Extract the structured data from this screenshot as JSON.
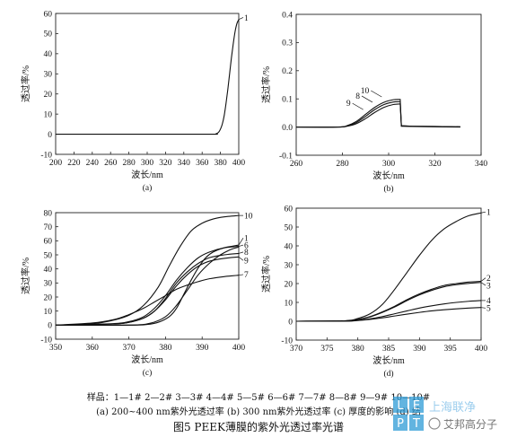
{
  "chart_data": [
    {
      "id": "a",
      "type": "line",
      "sublabel": "(a)",
      "xlabel": "波长/nm",
      "ylabel": "透过率/%",
      "xlim": [
        200,
        400
      ],
      "ylim": [
        -10,
        60
      ],
      "xticks": [
        200,
        220,
        240,
        260,
        280,
        300,
        320,
        340,
        360,
        380,
        400
      ],
      "yticks": [
        -10,
        0,
        10,
        20,
        30,
        40,
        50,
        60
      ],
      "series": [
        {
          "name": "1",
          "label_at": [
            400,
            58
          ],
          "x": [
            200,
            300,
            370,
            375,
            378,
            380,
            382,
            384,
            386,
            388,
            390,
            392,
            394,
            396,
            398,
            400
          ],
          "y": [
            0,
            0,
            0,
            0.2,
            1,
            2.5,
            5,
            9,
            15,
            22,
            30,
            38,
            45,
            51,
            55,
            57
          ]
        }
      ]
    },
    {
      "id": "b",
      "type": "line",
      "sublabel": "(b)",
      "xlabel": "波长/nm",
      "ylabel": "透过率/%",
      "xlim": [
        260,
        340
      ],
      "ylim": [
        -0.1,
        0.4
      ],
      "xticks": [
        260,
        280,
        300,
        320,
        340
      ],
      "yticks": [
        -0.1,
        0.0,
        0.1,
        0.2,
        0.3,
        0.4
      ],
      "series": [
        {
          "name": "10",
          "label_at": [
            297,
            0.107
          ],
          "x": [
            260,
            278,
            282,
            286,
            290,
            294,
            298,
            302,
            305,
            305.5,
            310,
            320,
            331
          ],
          "y": [
            0,
            0,
            0.005,
            0.02,
            0.045,
            0.07,
            0.088,
            0.097,
            0.098,
            0.005,
            0.003,
            0.002,
            0.001
          ]
        },
        {
          "name": "8",
          "label_at": [
            293,
            0.088
          ],
          "x": [
            260,
            278,
            282,
            286,
            290,
            294,
            298,
            302,
            305,
            305.5,
            310,
            320,
            331
          ],
          "y": [
            0,
            0,
            0.004,
            0.016,
            0.038,
            0.062,
            0.08,
            0.089,
            0.09,
            0.004,
            0.003,
            0.002,
            0.001
          ]
        },
        {
          "name": "9",
          "label_at": [
            289,
            0.062
          ],
          "x": [
            260,
            278,
            282,
            286,
            290,
            294,
            298,
            302,
            305,
            305.5,
            310,
            320,
            331
          ],
          "y": [
            0,
            0,
            0.003,
            0.012,
            0.03,
            0.052,
            0.07,
            0.08,
            0.082,
            0.003,
            0.002,
            0.001,
            0
          ]
        }
      ]
    },
    {
      "id": "c",
      "type": "line",
      "sublabel": "(c)",
      "xlabel": "波长/nm",
      "ylabel": "透过率/%",
      "xlim": [
        350,
        400
      ],
      "ylim": [
        -10,
        80
      ],
      "xticks": [
        350,
        360,
        370,
        380,
        390,
        400
      ],
      "yticks": [
        -10,
        0,
        10,
        20,
        30,
        40,
        50,
        60,
        70,
        80
      ],
      "series": [
        {
          "name": "10",
          "label_at": [
            400,
            78
          ],
          "x": [
            350,
            360,
            365,
            370,
            374,
            378,
            381,
            384,
            387,
            390,
            393,
            396,
            400
          ],
          "y": [
            0,
            1,
            3,
            7,
            14,
            27,
            42,
            56,
            67,
            72.5,
            75.5,
            77,
            78
          ]
        },
        {
          "name": "1",
          "label_at": [
            400,
            62
          ],
          "x": [
            350,
            370,
            375,
            378,
            381,
            383,
            385,
            387,
            389,
            391,
            393,
            396,
            400
          ],
          "y": [
            0,
            0,
            0.5,
            2,
            6,
            12,
            22,
            32,
            41,
            48,
            52,
            55,
            57
          ]
        },
        {
          "name": "6",
          "label_at": [
            400,
            57
          ],
          "x": [
            350,
            365,
            370,
            374,
            377,
            380,
            383,
            386,
            389,
            392,
            396,
            400
          ],
          "y": [
            0,
            1,
            2.5,
            6,
            12,
            21,
            32,
            41,
            48,
            52,
            55,
            56
          ]
        },
        {
          "name": "8",
          "label_at": [
            400,
            52
          ],
          "x": [
            350,
            365,
            370,
            374,
            377,
            380,
            383,
            386,
            389,
            392,
            396,
            400
          ],
          "y": [
            0,
            0.8,
            2,
            5,
            10,
            19,
            30,
            38,
            44,
            48,
            50,
            51
          ]
        },
        {
          "name": "9",
          "label_at": [
            400,
            46
          ],
          "x": [
            350,
            365,
            370,
            374,
            377,
            380,
            383,
            386,
            389,
            392,
            396,
            400
          ],
          "y": [
            0,
            0.8,
            2,
            5,
            10,
            18,
            28,
            36,
            42,
            45.5,
            47.5,
            48.5
          ]
        },
        {
          "name": "7",
          "label_at": [
            400,
            36
          ],
          "x": [
            350,
            360,
            366,
            370,
            374,
            377,
            380,
            383,
            386,
            389,
            392,
            396,
            400
          ],
          "y": [
            0,
            1.5,
            4,
            7.5,
            12,
            16.5,
            21,
            25.5,
            28.5,
            31,
            33,
            34.5,
            35.5
          ]
        },
        {
          "name": "4",
          "label_at": [
            401,
            0
          ],
          "x": [
            350,
            370,
            376,
            380,
            383,
            386,
            389,
            392,
            395,
            398,
            400
          ],
          "y": [
            0,
            0,
            1.5,
            6,
            14,
            25,
            36,
            44,
            50,
            54,
            55.5
          ]
        }
      ]
    },
    {
      "id": "d",
      "type": "line",
      "sublabel": "(d)",
      "xlabel": "波长/nm",
      "ylabel": "透过率/%",
      "xlim": [
        370,
        400
      ],
      "ylim": [
        -10,
        60
      ],
      "xticks": [
        370,
        375,
        380,
        385,
        390,
        395,
        400
      ],
      "yticks": [
        -10,
        0,
        10,
        20,
        30,
        40,
        50,
        60
      ],
      "series": [
        {
          "name": "1",
          "label_at": [
            400,
            58
          ],
          "x": [
            370,
            378,
            380,
            382,
            384,
            386,
            388,
            390,
            392,
            394,
            396,
            398,
            400
          ],
          "y": [
            0,
            0.3,
            1.5,
            4,
            9,
            17,
            26,
            35,
            43,
            49,
            53,
            56,
            57.5
          ]
        },
        {
          "name": "2",
          "label_at": [
            400,
            23
          ],
          "x": [
            370,
            378,
            380,
            382,
            384,
            386,
            388,
            390,
            392,
            394,
            396,
            398,
            400
          ],
          "y": [
            0,
            0.2,
            1,
            2.5,
            5,
            8,
            11.5,
            14.5,
            17,
            19,
            20,
            20.8,
            21.2
          ]
        },
        {
          "name": "3",
          "label_at": [
            400,
            19
          ],
          "x": [
            370,
            378,
            380,
            382,
            384,
            386,
            388,
            390,
            392,
            394,
            396,
            398,
            400
          ],
          "y": [
            0,
            0.2,
            0.9,
            2.3,
            4.7,
            7.6,
            11,
            14,
            16.4,
            18.3,
            19.4,
            20.1,
            20.6
          ]
        },
        {
          "name": "4",
          "label_at": [
            400,
            11
          ],
          "x": [
            370,
            378,
            380,
            382,
            384,
            386,
            388,
            390,
            392,
            394,
            396,
            398,
            400
          ],
          "y": [
            0,
            0.1,
            0.5,
            1.3,
            2.5,
            4,
            5.5,
            7,
            8.2,
            9.2,
            10,
            10.6,
            11
          ]
        },
        {
          "name": "5",
          "label_at": [
            400,
            7
          ],
          "x": [
            370,
            378,
            380,
            382,
            384,
            386,
            388,
            390,
            392,
            394,
            396,
            398,
            400
          ],
          "y": [
            0,
            0.1,
            0.4,
            1,
            1.8,
            2.8,
            3.8,
            4.7,
            5.5,
            6.1,
            6.6,
            7,
            7.3
          ]
        }
      ]
    }
  ],
  "legend_line": "样品：1—1# 2—2# 3—3# 4—4# 5—5# 6—6# 7—7# 8—8# 9—9# 10—10#",
  "caption_line": "(a) 200~400 nm紫外光透过率 (b) 300 nm紫外光透过率 (c) 厚度的影响 (d) 结",
  "figure_title": "图5   PEEK薄膜的紫外光透过率光谱",
  "watermark": {
    "logo_letters": "LEPT",
    "text": "上海联净 艾邦高分子"
  }
}
